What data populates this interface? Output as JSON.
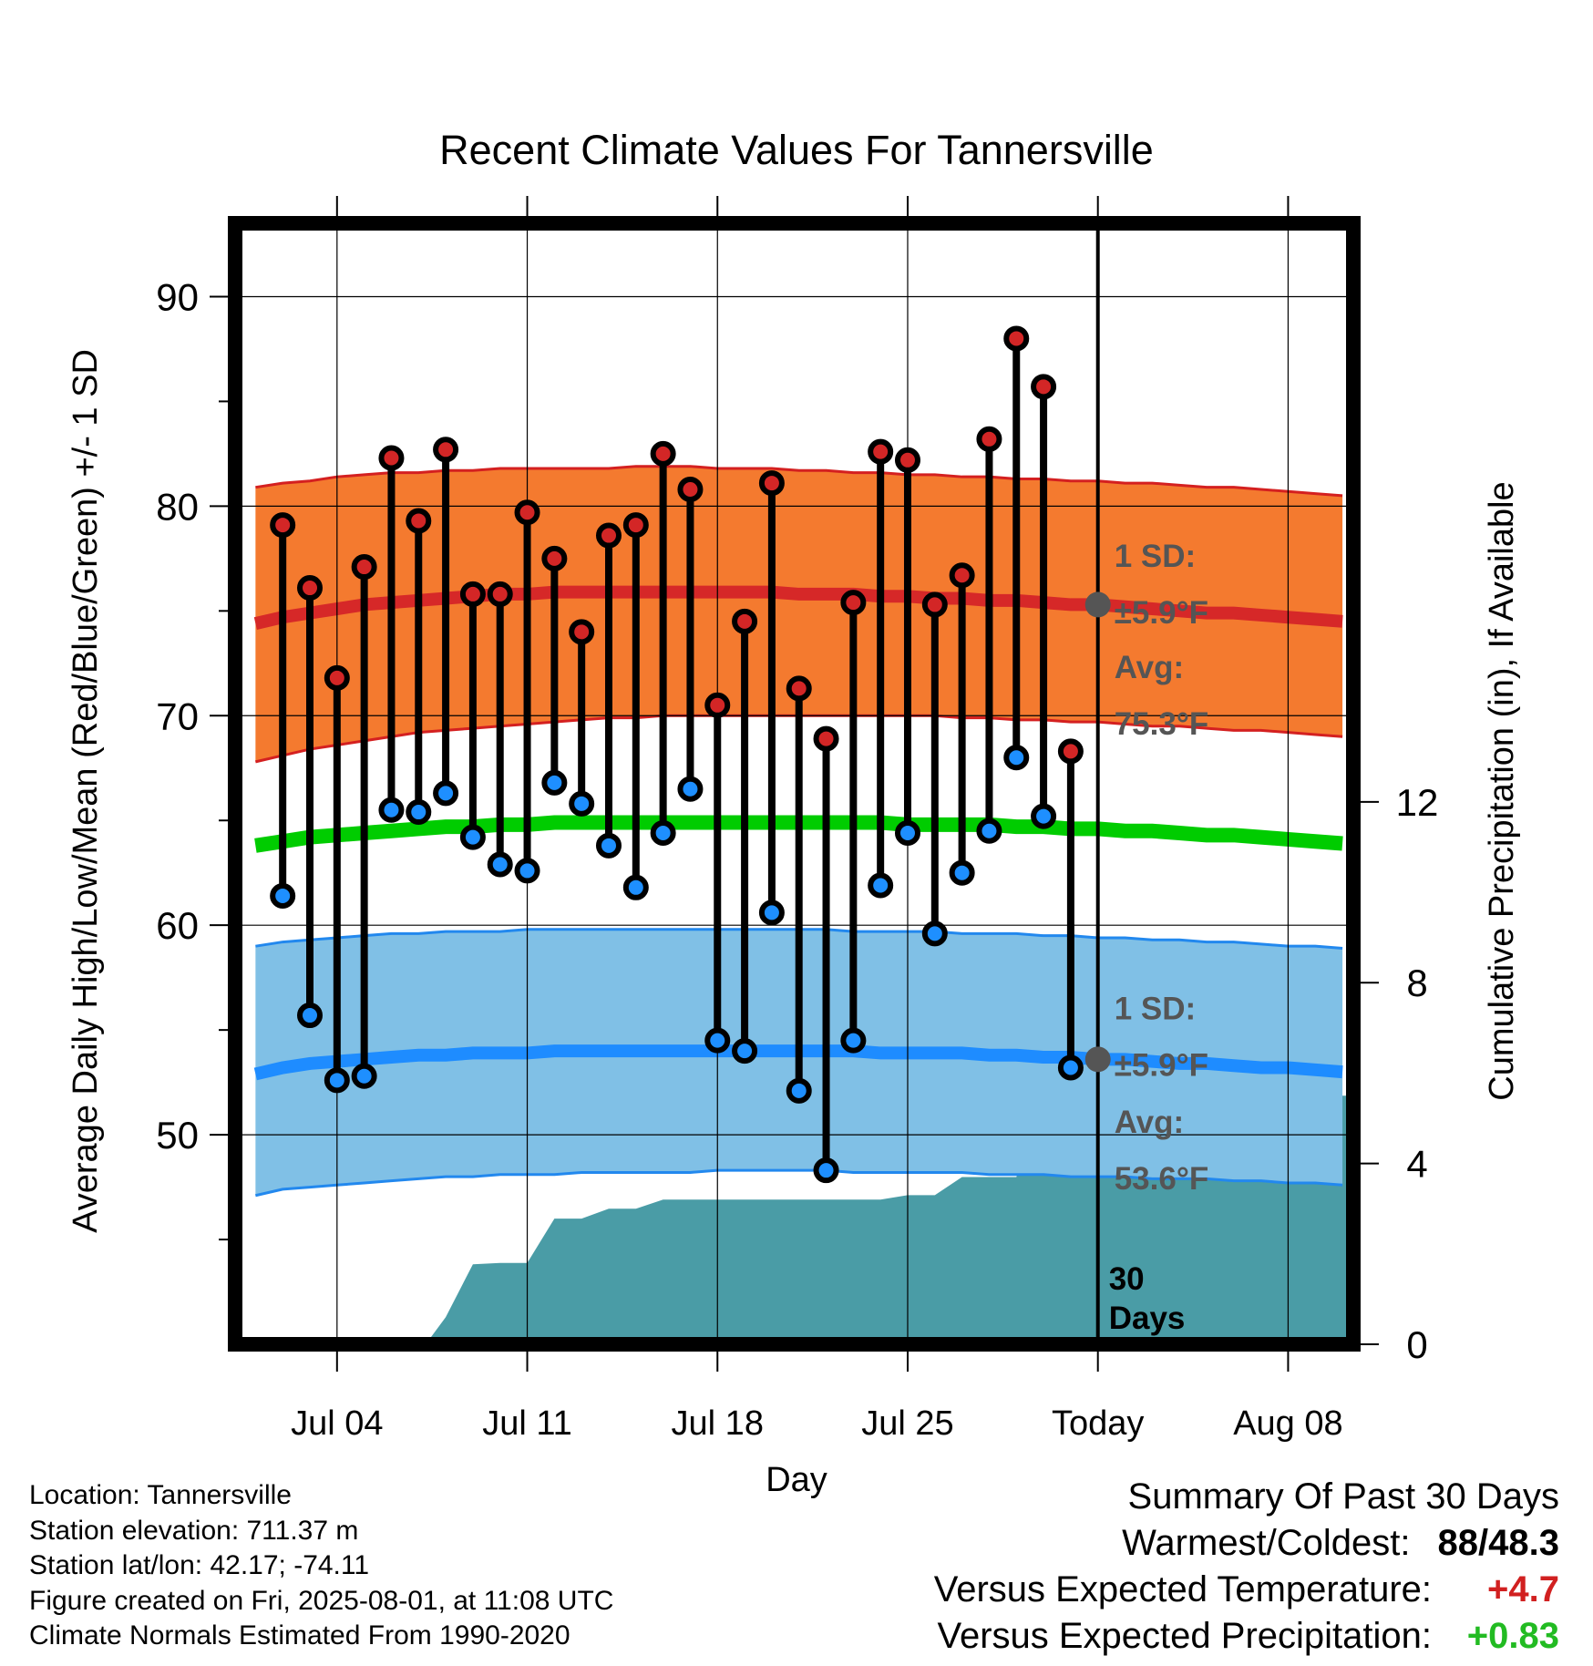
{
  "chart_data": {
    "type": "line",
    "title": "Recent Climate Values For Tannersville",
    "xlabel": "Day",
    "ylabel": "Average Daily High/Low/Mean (Red/Blue/Green) +/- 1 SD",
    "y2label": "Cumulative Precipitation (in), If Available",
    "ylim": [
      40,
      93.5
    ],
    "y2lim": [
      0,
      24.8
    ],
    "xlim": [
      -0.75,
      40.4
    ],
    "x_tick_labels": [
      {
        "x": 3,
        "label": "Jul 04"
      },
      {
        "x": 10,
        "label": "Jul 11"
      },
      {
        "x": 17,
        "label": "Jul 18"
      },
      {
        "x": 24,
        "label": "Jul 25"
      },
      {
        "x": 31,
        "label": "Today"
      },
      {
        "x": 38,
        "label": "Aug 08"
      }
    ],
    "y_ticks": [
      50,
      60,
      70,
      80,
      90
    ],
    "y2_ticks": [
      0,
      4,
      8,
      12
    ],
    "grid": true,
    "today_x": 31,
    "days": [
      1,
      2,
      3,
      4,
      5,
      6,
      7,
      8,
      9,
      10,
      11,
      12,
      13,
      14,
      15,
      16,
      17,
      18,
      19,
      20,
      21,
      22,
      23,
      24,
      25,
      26,
      27,
      28,
      29,
      30
    ],
    "observed_high": [
      79.1,
      76.1,
      71.8,
      77.1,
      82.3,
      79.3,
      82.7,
      75.8,
      75.8,
      79.7,
      77.5,
      74.0,
      78.6,
      79.1,
      82.5,
      80.8,
      70.5,
      74.5,
      81.1,
      71.3,
      68.9,
      75.4,
      82.6,
      82.2,
      75.3,
      76.7,
      83.2,
      88.0,
      85.7,
      68.3
    ],
    "observed_low": [
      61.4,
      55.7,
      52.6,
      52.8,
      65.5,
      65.4,
      66.3,
      64.2,
      62.9,
      62.6,
      66.8,
      65.8,
      63.8,
      61.8,
      64.4,
      66.5,
      54.5,
      54.0,
      60.6,
      52.1,
      48.3,
      54.5,
      61.9,
      64.4,
      59.6,
      62.5,
      64.5,
      68.0,
      65.2,
      53.2
    ],
    "normal_x": [
      0,
      1,
      2,
      3,
      4,
      5,
      6,
      7,
      8,
      9,
      10,
      11,
      12,
      13,
      14,
      15,
      16,
      17,
      18,
      19,
      20,
      21,
      22,
      23,
      24,
      25,
      26,
      27,
      28,
      29,
      30,
      31,
      32,
      33,
      34,
      35,
      36,
      37,
      38,
      39,
      40
    ],
    "normal_high": [
      74.4,
      74.7,
      74.9,
      75.1,
      75.3,
      75.4,
      75.5,
      75.6,
      75.7,
      75.8,
      75.8,
      75.9,
      75.9,
      75.9,
      75.9,
      75.9,
      75.9,
      75.9,
      75.9,
      75.9,
      75.8,
      75.8,
      75.8,
      75.7,
      75.7,
      75.6,
      75.6,
      75.5,
      75.5,
      75.4,
      75.3,
      75.3,
      75.2,
      75.1,
      75.0,
      74.9,
      74.9,
      74.8,
      74.7,
      74.6,
      74.5
    ],
    "normal_high_sd_upper": [
      80.9,
      81.1,
      81.2,
      81.4,
      81.5,
      81.6,
      81.6,
      81.7,
      81.7,
      81.8,
      81.8,
      81.8,
      81.8,
      81.8,
      81.9,
      81.9,
      81.9,
      81.8,
      81.8,
      81.8,
      81.7,
      81.7,
      81.6,
      81.6,
      81.5,
      81.5,
      81.4,
      81.4,
      81.3,
      81.3,
      81.2,
      81.2,
      81.1,
      81.1,
      81.0,
      80.9,
      80.9,
      80.8,
      80.7,
      80.6,
      80.5
    ],
    "normal_high_sd_lower": [
      67.8,
      68.1,
      68.4,
      68.6,
      68.8,
      69.0,
      69.2,
      69.3,
      69.4,
      69.5,
      69.6,
      69.7,
      69.8,
      69.9,
      69.9,
      70.0,
      70.0,
      70.0,
      70.0,
      70.0,
      70.0,
      70.0,
      70.0,
      70.0,
      70.0,
      70.0,
      69.9,
      69.9,
      69.8,
      69.8,
      69.7,
      69.7,
      69.6,
      69.5,
      69.5,
      69.4,
      69.3,
      69.3,
      69.2,
      69.1,
      69.0
    ],
    "normal_mean": [
      63.8,
      64.0,
      64.2,
      64.3,
      64.4,
      64.5,
      64.6,
      64.7,
      64.7,
      64.8,
      64.8,
      64.9,
      64.9,
      64.9,
      64.9,
      64.9,
      64.9,
      64.9,
      64.9,
      64.9,
      64.9,
      64.9,
      64.9,
      64.9,
      64.8,
      64.8,
      64.8,
      64.8,
      64.7,
      64.7,
      64.6,
      64.6,
      64.5,
      64.5,
      64.4,
      64.3,
      64.3,
      64.2,
      64.1,
      64.0,
      63.9
    ],
    "normal_low": [
      52.9,
      53.2,
      53.4,
      53.5,
      53.6,
      53.7,
      53.8,
      53.8,
      53.9,
      53.9,
      53.9,
      54.0,
      54.0,
      54.0,
      54.0,
      54.0,
      54.0,
      54.0,
      54.0,
      54.0,
      54.0,
      54.0,
      54.0,
      53.9,
      53.9,
      53.9,
      53.9,
      53.8,
      53.8,
      53.7,
      53.7,
      53.6,
      53.6,
      53.5,
      53.4,
      53.4,
      53.3,
      53.2,
      53.2,
      53.1,
      53.0
    ],
    "normal_low_sd_upper": [
      59.0,
      59.2,
      59.3,
      59.4,
      59.5,
      59.6,
      59.6,
      59.7,
      59.7,
      59.7,
      59.8,
      59.8,
      59.8,
      59.8,
      59.8,
      59.8,
      59.8,
      59.8,
      59.8,
      59.8,
      59.8,
      59.8,
      59.7,
      59.7,
      59.7,
      59.7,
      59.6,
      59.6,
      59.6,
      59.5,
      59.5,
      59.4,
      59.4,
      59.3,
      59.3,
      59.2,
      59.2,
      59.1,
      59.0,
      59.0,
      58.9
    ],
    "normal_low_sd_lower": [
      47.1,
      47.4,
      47.5,
      47.6,
      47.7,
      47.8,
      47.9,
      48.0,
      48.0,
      48.1,
      48.1,
      48.1,
      48.2,
      48.2,
      48.2,
      48.2,
      48.2,
      48.3,
      48.3,
      48.3,
      48.3,
      48.3,
      48.2,
      48.2,
      48.2,
      48.2,
      48.2,
      48.1,
      48.1,
      48.1,
      48.0,
      48.0,
      48.0,
      47.9,
      47.9,
      47.9,
      47.8,
      47.8,
      47.7,
      47.7,
      47.6
    ],
    "precip_cumulative": [
      0,
      0,
      0,
      0,
      0,
      0,
      0.03,
      0.6,
      1.77,
      1.8,
      1.8,
      2.78,
      2.78,
      3.0,
      3.0,
      3.2,
      3.2,
      3.2,
      3.2,
      3.2,
      3.2,
      3.2,
      3.2,
      3.2,
      3.3,
      3.3,
      3.7,
      3.7,
      3.7,
      5.5,
      5.5
    ],
    "precip_cumulative_days": [
      0,
      1,
      2,
      3,
      4,
      5,
      6.3,
      7,
      8,
      9,
      10,
      11,
      12,
      13,
      14,
      15,
      16,
      17,
      18,
      19,
      20,
      21,
      22,
      23,
      24,
      25,
      26,
      27,
      28,
      29,
      30
    ],
    "precip_forecast_flat": 5.5,
    "series": [
      {
        "name": "High",
        "color": "#cc2222"
      },
      {
        "name": "Low",
        "color": "#2f8fee"
      },
      {
        "name": "Mean",
        "color": "#00cc00"
      },
      {
        "name": "Cumulative Precipitation",
        "color": "#4a9ca6"
      }
    ],
    "annotations": {
      "high_sd_label": "1 SD:",
      "high_sd_value": "±5.9°F",
      "high_avg_label": "Avg:",
      "high_avg_value": "75.3°F",
      "high_avg": 75.3,
      "low_sd_label": "1 SD:",
      "low_sd_value": "±5.9°F",
      "low_avg_label": "Avg:",
      "low_avg_value": "53.6°F",
      "low_avg": 53.6,
      "window_label_1": "30",
      "window_label_2": "Days"
    }
  },
  "colors": {
    "high_band": "#f47a2f",
    "high_band_edge": "#d42020",
    "high_line": "#d62828",
    "low_band": "#80c0e6",
    "low_band_edge": "#2288ee",
    "low_line": "#1e8cff",
    "mean_line": "#00cc00",
    "precip": "#4a9ca6",
    "high_dot": "#d32626",
    "low_dot": "#1e8fff",
    "avg_marker": "#555555",
    "annotation_text": "#555555",
    "warm": "#d12020",
    "wet": "#22bb22"
  },
  "station_info": [
    "Location: Tannersville",
    "Station elevation: 711.37 m",
    "Station lat/lon: 42.17; -74.11",
    "Figure created on Fri, 2025-08-01, at 11:08 UTC",
    "Climate Normals Estimated From 1990-2020"
  ],
  "summary": {
    "title": "Summary Of Past 30 Days",
    "warmest_coldest_label": "Warmest/Coldest:",
    "warmest_coldest_value": "88/48.3",
    "temp_label": "Versus Expected Temperature:",
    "temp_value": "+4.7",
    "precip_label": "Versus Expected Precipitation:",
    "precip_value": "+0.83"
  }
}
